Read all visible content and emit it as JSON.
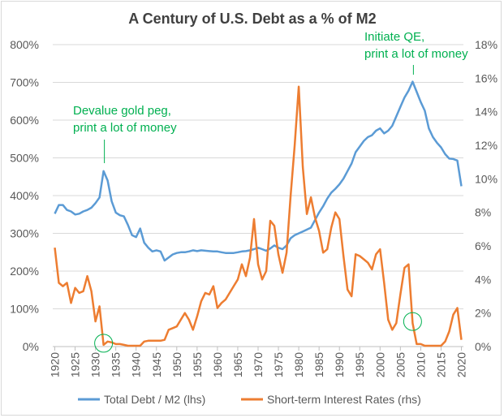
{
  "chart_data": {
    "type": "line",
    "title": "A Century of U.S. Debt as a % of M2",
    "x": [
      1920,
      1921,
      1922,
      1923,
      1924,
      1925,
      1926,
      1927,
      1928,
      1929,
      1930,
      1931,
      1932,
      1933,
      1934,
      1935,
      1936,
      1937,
      1938,
      1939,
      1940,
      1941,
      1942,
      1943,
      1944,
      1945,
      1946,
      1947,
      1948,
      1949,
      1950,
      1951,
      1952,
      1953,
      1954,
      1955,
      1956,
      1957,
      1958,
      1959,
      1960,
      1961,
      1962,
      1963,
      1964,
      1965,
      1966,
      1967,
      1968,
      1969,
      1970,
      1971,
      1972,
      1973,
      1974,
      1975,
      1976,
      1977,
      1978,
      1979,
      1980,
      1981,
      1982,
      1983,
      1984,
      1985,
      1986,
      1987,
      1988,
      1989,
      1990,
      1991,
      1992,
      1993,
      1994,
      1995,
      1996,
      1997,
      1998,
      1999,
      2000,
      2001,
      2002,
      2003,
      2004,
      2005,
      2006,
      2007,
      2008,
      2009,
      2010,
      2011,
      2012,
      2013,
      2014,
      2015,
      2016,
      2017,
      2018,
      2019,
      2020
    ],
    "x_ticks": [
      1920,
      1925,
      1930,
      1935,
      1940,
      1945,
      1950,
      1955,
      1960,
      1965,
      1970,
      1975,
      1980,
      1985,
      1990,
      1995,
      2000,
      2005,
      2010,
      2015,
      2020
    ],
    "xlim": [
      1919.5,
      2020.5
    ],
    "y_left": {
      "lim": [
        0,
        800
      ],
      "ticks": [
        0,
        100,
        200,
        300,
        400,
        500,
        600,
        700,
        800
      ],
      "tick_labels": [
        "0%",
        "100%",
        "200%",
        "300%",
        "400%",
        "500%",
        "600%",
        "700%",
        "800%"
      ]
    },
    "y_right": {
      "lim": [
        0,
        18
      ],
      "ticks": [
        0,
        2,
        4,
        6,
        8,
        10,
        12,
        14,
        16,
        18
      ],
      "tick_labels": [
        "0%",
        "2%",
        "4%",
        "6%",
        "8%",
        "10%",
        "12%",
        "14%",
        "16%",
        "18%"
      ]
    },
    "grid": true,
    "legend_position": "bottom",
    "series": [
      {
        "name": "Total Debt / M2 (lhs)",
        "axis": "left",
        "color": "#5b9bd5",
        "values": [
          352,
          375,
          375,
          362,
          358,
          350,
          352,
          358,
          362,
          368,
          380,
          395,
          465,
          440,
          385,
          355,
          348,
          345,
          322,
          295,
          290,
          313,
          275,
          262,
          252,
          255,
          252,
          228,
          236,
          244,
          248,
          250,
          250,
          252,
          255,
          253,
          255,
          254,
          253,
          252,
          252,
          250,
          248,
          248,
          248,
          250,
          252,
          253,
          255,
          258,
          262,
          258,
          254,
          260,
          268,
          262,
          258,
          268,
          287,
          295,
          300,
          305,
          310,
          315,
          335,
          355,
          372,
          392,
          408,
          418,
          430,
          445,
          465,
          485,
          515,
          530,
          545,
          555,
          560,
          572,
          578,
          565,
          572,
          585,
          610,
          635,
          660,
          678,
          702,
          675,
          648,
          625,
          578,
          555,
          540,
          528,
          510,
          498,
          497,
          493,
          425
        ]
      },
      {
        "name": "Short-term Interest Rates (rhs)",
        "axis": "right",
        "color": "#ed7d31",
        "values": [
          5.9,
          3.8,
          3.6,
          3.8,
          2.6,
          3.5,
          3.2,
          3.3,
          4.2,
          3.3,
          1.5,
          2.4,
          0.1,
          0.3,
          0.25,
          0.15,
          0.15,
          0.1,
          0.05,
          0.05,
          0.05,
          0.05,
          0.3,
          0.35,
          0.35,
          0.35,
          0.35,
          0.4,
          1.0,
          1.1,
          1.2,
          1.6,
          2.0,
          1.6,
          1.0,
          1.8,
          2.7,
          3.2,
          3.1,
          3.6,
          2.3,
          2.6,
          2.8,
          3.2,
          3.6,
          4.0,
          4.9,
          4.2,
          5.3,
          7.6,
          4.9,
          4.0,
          4.5,
          7.5,
          7.2,
          5.5,
          4.4,
          5.6,
          9.0,
          12.0,
          15.5,
          10.7,
          7.9,
          8.9,
          7.7,
          6.9,
          5.6,
          5.8,
          7.1,
          8.0,
          7.6,
          5.4,
          3.4,
          3.0,
          5.5,
          5.4,
          5.2,
          5.0,
          4.6,
          5.5,
          5.8,
          3.8,
          1.6,
          1.0,
          1.4,
          3.1,
          4.7,
          4.9,
          1.4,
          0.15,
          0.15,
          0.05,
          0.05,
          0.05,
          0.05,
          0.05,
          0.3,
          0.9,
          1.9,
          2.3,
          0.4
        ]
      }
    ],
    "annotations": [
      {
        "lines": [
          "Devalue gold peg,",
          "print a lot of money"
        ],
        "year": 1932,
        "color": "#00b050"
      },
      {
        "lines": [
          "Initiate QE,",
          "print a lot of money"
        ],
        "year": 2008,
        "color": "#00b050"
      }
    ],
    "highlight_circles": [
      {
        "year": 1932,
        "color": "#00b050"
      },
      {
        "year": 2008,
        "color": "#00b050"
      }
    ]
  }
}
